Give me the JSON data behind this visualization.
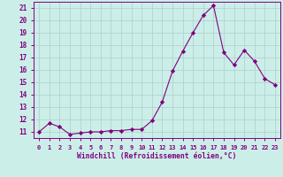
{
  "x": [
    0,
    1,
    2,
    3,
    4,
    5,
    6,
    7,
    8,
    9,
    10,
    11,
    12,
    13,
    14,
    15,
    16,
    17,
    18,
    19,
    20,
    21,
    22,
    23
  ],
  "y": [
    11.0,
    11.7,
    11.4,
    10.8,
    10.9,
    11.0,
    11.0,
    11.1,
    11.1,
    11.2,
    11.2,
    11.9,
    13.4,
    15.9,
    17.5,
    19.0,
    20.4,
    21.2,
    17.4,
    16.4,
    17.6,
    16.7,
    15.3,
    14.8
  ],
  "line_color": "#800080",
  "marker": "D",
  "marker_size": 2.2,
  "bg_color": "#cceee8",
  "grid_color": "#b0d4d0",
  "tick_color": "#800080",
  "label_color": "#800080",
  "ylabel_ticks": [
    11,
    12,
    13,
    14,
    15,
    16,
    17,
    18,
    19,
    20,
    21
  ],
  "xlim": [
    -0.5,
    23.5
  ],
  "ylim": [
    10.5,
    21.5
  ],
  "xticks": [
    0,
    1,
    2,
    3,
    4,
    5,
    6,
    7,
    8,
    9,
    10,
    11,
    12,
    13,
    14,
    15,
    16,
    17,
    18,
    19,
    20,
    21,
    22,
    23
  ],
  "xlabel": "Windchill (Refroidissement éolien,°C)"
}
